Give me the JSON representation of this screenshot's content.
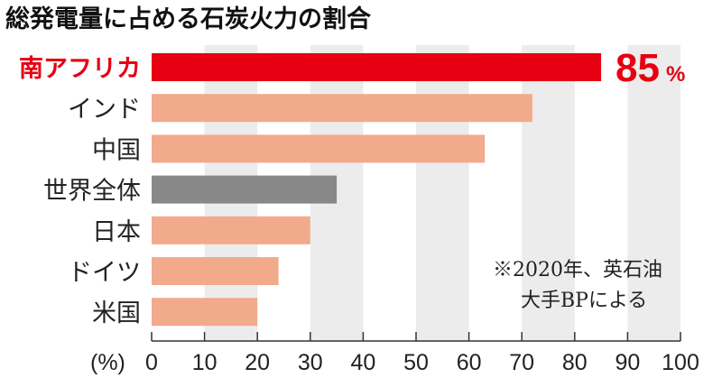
{
  "chart_data": {
    "type": "bar",
    "orientation": "horizontal",
    "title": "総発電量に占める石炭火力の割合",
    "categories": [
      "南アフリカ",
      "インド",
      "中国",
      "世界全体",
      "日本",
      "ドイツ",
      "米国"
    ],
    "values": [
      85,
      72,
      63,
      35,
      30,
      24,
      20
    ],
    "highlight_index": 0,
    "highlight_label": {
      "value": "85",
      "unit": "%"
    },
    "xlabel": "(%)",
    "xlim": [
      0,
      100
    ],
    "xticks": [
      0,
      10,
      20,
      30,
      40,
      50,
      60,
      70,
      80,
      90,
      100
    ],
    "grid": "alternating vertical bands",
    "note": [
      "※2020年、英石油",
      "大手BPによる"
    ],
    "colors": {
      "highlight": "#e60012",
      "default": "#f2aa8c",
      "world": "#888888",
      "band": "#ececec",
      "highlight_text": "#e60012"
    },
    "bar_kinds": [
      "highlight",
      "default",
      "default",
      "world",
      "default",
      "default",
      "default"
    ]
  }
}
